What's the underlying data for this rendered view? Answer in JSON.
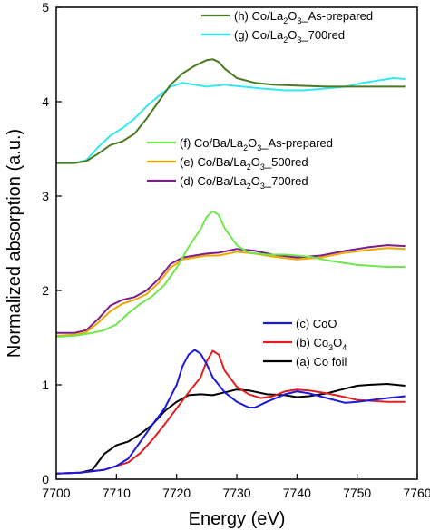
{
  "chart_data": {
    "type": "line",
    "xlabel": "Energy (eV)",
    "ylabel": "Normalized absorption (a.u.)",
    "xlim": [
      7700,
      7760
    ],
    "ylim": [
      0,
      5
    ],
    "xticks": [
      7700,
      7710,
      7720,
      7730,
      7740,
      7750,
      7760
    ],
    "yticks": [
      0,
      1,
      2,
      3,
      4,
      5
    ],
    "grid": false,
    "legend_groups": [
      {
        "placement": "top-right",
        "entries": [
          {
            "series": "h",
            "prefix": "(h) Co/La",
            "sub1": "2",
            "mid": "O",
            "sub2": "3",
            "suffix": "_As-prepared"
          },
          {
            "series": "g",
            "prefix": "(g) Co/La",
            "sub1": "2",
            "mid": "O",
            "sub2": "3",
            "suffix": "_700red"
          }
        ]
      },
      {
        "placement": "middle-right",
        "entries": [
          {
            "series": "f",
            "prefix": "(f) Co/Ba/La",
            "sub1": "2",
            "mid": "O",
            "sub2": "3",
            "suffix": "_As-prepared"
          },
          {
            "series": "e",
            "prefix": "(e) Co/Ba/La",
            "sub1": "2",
            "mid": "O",
            "sub2": "3",
            "suffix": "_500red"
          },
          {
            "series": "d",
            "prefix": "(d) Co/Ba/La",
            "sub1": "2",
            "mid": "O",
            "sub2": "3",
            "suffix": "_700red"
          }
        ]
      },
      {
        "placement": "bottom-right",
        "entries": [
          {
            "series": "c",
            "prefix": "(c) CoO",
            "sub1": "",
            "mid": "",
            "sub2": "",
            "suffix": ""
          },
          {
            "series": "b",
            "prefix": "(b) Co",
            "sub1": "3",
            "mid": "O",
            "sub2": "4",
            "suffix": ""
          },
          {
            "series": "a",
            "prefix": "(a) Co foil",
            "sub1": "",
            "mid": "",
            "sub2": "",
            "suffix": ""
          }
        ]
      }
    ],
    "series": [
      {
        "id": "a",
        "label": "(a) Co foil",
        "color": "#000000",
        "x": [
          7700,
          7704,
          7706,
          7708,
          7710,
          7712,
          7714,
          7716,
          7718,
          7720,
          7722,
          7724,
          7726,
          7728,
          7730,
          7732,
          7735,
          7738,
          7740,
          7742,
          7745,
          7748,
          7750,
          7752,
          7755,
          7758
        ],
        "y": [
          0.06,
          0.07,
          0.1,
          0.27,
          0.36,
          0.4,
          0.48,
          0.58,
          0.72,
          0.82,
          0.89,
          0.9,
          0.89,
          0.92,
          0.95,
          0.94,
          0.9,
          0.89,
          0.87,
          0.88,
          0.91,
          0.96,
          0.99,
          1.0,
          1.01,
          0.99
        ]
      },
      {
        "id": "b",
        "label": "(b) Co3O4",
        "color": "#e02020",
        "x": [
          7700,
          7704,
          7708,
          7712,
          7714,
          7716,
          7718,
          7720,
          7722,
          7724,
          7725,
          7726,
          7727,
          7728,
          7730,
          7732,
          7734,
          7736,
          7738,
          7740,
          7742,
          7745,
          7748,
          7750,
          7755,
          7758
        ],
        "y": [
          0.06,
          0.07,
          0.1,
          0.18,
          0.28,
          0.42,
          0.58,
          0.75,
          0.92,
          1.08,
          1.25,
          1.36,
          1.32,
          1.15,
          0.98,
          0.9,
          0.86,
          0.88,
          0.93,
          0.95,
          0.94,
          0.91,
          0.87,
          0.84,
          0.82,
          0.82
        ]
      },
      {
        "id": "c",
        "label": "(c) CoO",
        "color": "#1a1adc",
        "x": [
          7700,
          7704,
          7708,
          7710,
          7712,
          7714,
          7716,
          7718,
          7720,
          7721,
          7722,
          7723,
          7724,
          7725,
          7726,
          7728,
          7730,
          7732,
          7733,
          7735,
          7738,
          7740,
          7742,
          7745,
          7748,
          7750,
          7755,
          7758
        ],
        "y": [
          0.06,
          0.07,
          0.1,
          0.14,
          0.22,
          0.4,
          0.58,
          0.75,
          1.0,
          1.2,
          1.32,
          1.37,
          1.33,
          1.22,
          1.08,
          0.92,
          0.82,
          0.76,
          0.76,
          0.82,
          0.9,
          0.93,
          0.91,
          0.86,
          0.81,
          0.82,
          0.86,
          0.88
        ]
      },
      {
        "id": "d",
        "label": "(d) Co/Ba/La2O3_700red",
        "color": "#7a1e8a",
        "x": [
          7700,
          7703,
          7705,
          7707,
          7709,
          7711,
          7713,
          7715,
          7717,
          7719,
          7721,
          7723,
          7725,
          7727,
          7730,
          7733,
          7736,
          7740,
          7744,
          7748,
          7752,
          7755,
          7758
        ],
        "y": [
          1.55,
          1.55,
          1.58,
          1.7,
          1.84,
          1.9,
          1.93,
          2.0,
          2.12,
          2.28,
          2.35,
          2.37,
          2.39,
          2.4,
          2.44,
          2.42,
          2.38,
          2.35,
          2.37,
          2.42,
          2.46,
          2.48,
          2.47
        ]
      },
      {
        "id": "e",
        "label": "(e) Co/Ba/La2O3_500red",
        "color": "#f0a800",
        "x": [
          7700,
          7703,
          7705,
          7707,
          7709,
          7711,
          7713,
          7715,
          7717,
          7719,
          7721,
          7723,
          7725,
          7727,
          7730,
          7733,
          7736,
          7740,
          7744,
          7748,
          7752,
          7755,
          7758
        ],
        "y": [
          1.52,
          1.53,
          1.56,
          1.66,
          1.78,
          1.86,
          1.9,
          1.96,
          2.08,
          2.24,
          2.33,
          2.35,
          2.37,
          2.37,
          2.41,
          2.39,
          2.36,
          2.33,
          2.35,
          2.4,
          2.43,
          2.45,
          2.44
        ]
      },
      {
        "id": "f",
        "label": "(f) Co/Ba/La2O3_As-prepared",
        "color": "#6ee84a",
        "x": [
          7700,
          7703,
          7706,
          7708,
          7710,
          7712,
          7714,
          7716,
          7718,
          7720,
          7722,
          7724,
          7725,
          7726,
          7727,
          7728,
          7730,
          7732,
          7735,
          7738,
          7742,
          7745,
          7750,
          7755,
          7758
        ],
        "y": [
          1.51,
          1.52,
          1.55,
          1.58,
          1.64,
          1.76,
          1.86,
          1.94,
          2.06,
          2.24,
          2.46,
          2.65,
          2.78,
          2.84,
          2.8,
          2.66,
          2.48,
          2.4,
          2.38,
          2.38,
          2.36,
          2.32,
          2.27,
          2.25,
          2.25
        ]
      },
      {
        "id": "g",
        "label": "(g) Co/La2O3_700red",
        "color": "#33e8f0",
        "x": [
          7700,
          7703,
          7705,
          7707,
          7709,
          7711,
          7713,
          7715,
          7717,
          7719,
          7721,
          7723,
          7725,
          7728,
          7731,
          7734,
          7738,
          7741,
          7745,
          7748,
          7751,
          7754,
          7756,
          7758
        ],
        "y": [
          3.35,
          3.35,
          3.38,
          3.52,
          3.64,
          3.72,
          3.82,
          3.95,
          4.06,
          4.16,
          4.2,
          4.18,
          4.16,
          4.18,
          4.16,
          4.14,
          4.12,
          4.12,
          4.14,
          4.16,
          4.2,
          4.23,
          4.25,
          4.24
        ]
      },
      {
        "id": "h",
        "label": "(h) Co/La2O3_As-prepared",
        "color": "#4a7a20",
        "x": [
          7700,
          7703,
          7705,
          7707,
          7709,
          7711,
          7713,
          7715,
          7717,
          7719,
          7721,
          7723,
          7725,
          7726,
          7727,
          7728,
          7730,
          7733,
          7736,
          7740,
          7745,
          7750,
          7755,
          7758
        ],
        "y": [
          3.35,
          3.35,
          3.37,
          3.45,
          3.54,
          3.58,
          3.66,
          3.82,
          4.0,
          4.18,
          4.3,
          4.38,
          4.44,
          4.45,
          4.42,
          4.35,
          4.25,
          4.2,
          4.18,
          4.17,
          4.16,
          4.16,
          4.16,
          4.16
        ]
      }
    ]
  }
}
